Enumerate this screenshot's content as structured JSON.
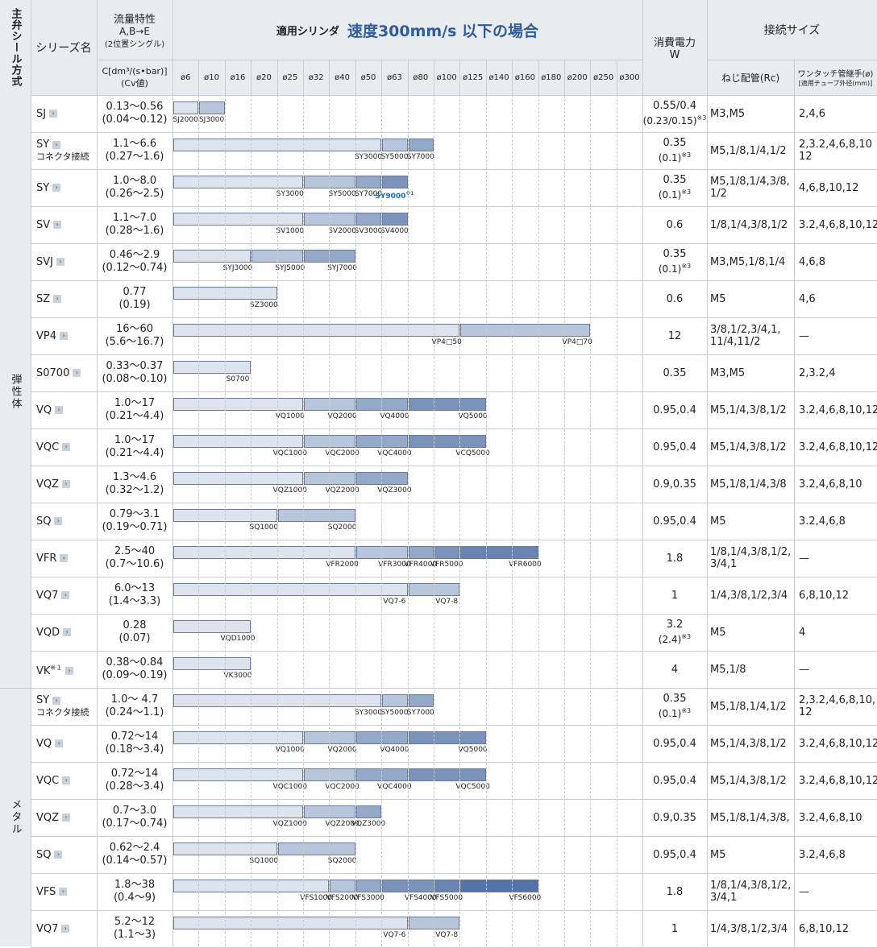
{
  "header": {
    "main_seal": "主弁シール方式",
    "series_name": "シリーズ名",
    "flow_title": "流量特性",
    "flow_ab": "A,B→E",
    "flow_sub": "(2位置シングル)",
    "flow_unit": "C[dm³/(s•bar)]",
    "flow_cv": "(Cv値)",
    "cyl_label": "適用シリンダ",
    "cyl_speed": "速度300mm/s 以下の場合",
    "power_title": "消費電力",
    "power_unit": "W",
    "conn_title": "接続サイズ",
    "conn_thread": "ねじ配管(Rc)",
    "conn_onetouch": "ワンタッチ管継手(ø)",
    "conn_onetouch_sub": "[適用チューブ外径(mm)]",
    "bores": [
      "ø6",
      "ø10",
      "ø16",
      "ø20",
      "ø25",
      "ø32",
      "ø40",
      "ø50",
      "ø63",
      "ø80",
      "ø100",
      "ø125",
      "ø140",
      "ø160",
      "ø180",
      "ø200",
      "ø250",
      "ø300"
    ]
  },
  "groups": [
    {
      "label": "弾性体",
      "rows": 16
    },
    {
      "label": "メタル",
      "rows": 7
    }
  ],
  "colors": {
    "seg1": "#dde4ee",
    "seg2": "#b7c6da",
    "seg3": "#94a8c8",
    "seg4": "#7b93bb",
    "seg5": "#6a84b2",
    "seg6": "#5573a6",
    "header_bg": "#e9ecef",
    "title_blue": "#2f5c9e",
    "accent_blue": "#1a6fc4"
  },
  "rows": [
    {
      "series": "SJ",
      "sub": "",
      "note": "",
      "flow": "0.13〜0.56",
      "cv": "(0.04〜0.12)",
      "power": "0.55/0.4",
      "power2": "(0.23/0.15)",
      "pnote": "※3",
      "thread": "M3,M5",
      "thread2": "",
      "onetouch": "2,4,6",
      "onetouch2": "",
      "bars": [
        {
          "to": 1,
          "label": "SJ2000"
        },
        {
          "to": 2,
          "label": "SJ3000"
        }
      ]
    },
    {
      "series": "SY",
      "sub": "コネクタ接続",
      "note": "",
      "flow": "1.1〜6.6",
      "cv": "(0.27〜1.6)",
      "power": "0.35",
      "power2": "(0.1)",
      "pnote": "※3",
      "thread": "M5,1/8,1/4,1/2",
      "thread2": "",
      "onetouch": "2,3.2,4,6,8,10",
      "onetouch2": "12",
      "bars": [
        {
          "to": 8,
          "label": "SY3000"
        },
        {
          "to": 9,
          "label": "SY5000"
        },
        {
          "to": 10,
          "label": "SY7000"
        }
      ]
    },
    {
      "series": "SY",
      "sub": "",
      "note": "",
      "flow": "1.0〜8.0",
      "cv": "(0.26〜2.5)",
      "power": "0.35",
      "power2": "(0.1)",
      "pnote": "※3",
      "thread": "M5,1/8,1/4,3/8,",
      "thread2": "1/2",
      "onetouch": "4,6,8,10,12",
      "onetouch2": "",
      "bars": [
        {
          "to": 5,
          "label": "SY3000"
        },
        {
          "to": 7,
          "label": "SY5000"
        },
        {
          "to": 8,
          "label": "SY7000"
        },
        {
          "to": 9,
          "label": "SY9000",
          "blue": true,
          "lnote": "※1"
        }
      ]
    },
    {
      "series": "SV",
      "sub": "",
      "note": "",
      "flow": "1.1〜7.0",
      "cv": "(0.28〜1.6)",
      "power": "0.6",
      "power2": "",
      "pnote": "",
      "thread": "1/8,1/4,3/8,1/2",
      "thread2": "",
      "onetouch": "3.2,4,6,8,10,12",
      "onetouch2": "",
      "bars": [
        {
          "to": 5,
          "label": "SV1000"
        },
        {
          "to": 7,
          "label": "SV2000"
        },
        {
          "to": 8,
          "label": "SV3000"
        },
        {
          "to": 9,
          "label": "SV4000"
        }
      ]
    },
    {
      "series": "SVJ",
      "sub": "",
      "note": "",
      "flow": "0.46〜2.9",
      "cv": "(0.12〜0.74)",
      "power": "0.35",
      "power2": "(0.1)",
      "pnote": "※3",
      "thread": "M3,M5,1/8,1/4",
      "thread2": "",
      "onetouch": "4,6,8",
      "onetouch2": "",
      "bars": [
        {
          "to": 3,
          "label": "SYJ3000"
        },
        {
          "to": 5,
          "label": "SYJ5000"
        },
        {
          "to": 7,
          "label": "SYJ7000"
        }
      ]
    },
    {
      "series": "SZ",
      "sub": "",
      "note": "",
      "flow": "0.77",
      "cv": "(0.19)",
      "power": "0.6",
      "power2": "",
      "pnote": "",
      "thread": "M5",
      "thread2": "",
      "onetouch": "4,6",
      "onetouch2": "",
      "bars": [
        {
          "to": 4,
          "label": "SZ3000"
        }
      ]
    },
    {
      "series": "VP4",
      "sub": "",
      "note": "",
      "flow": "16〜60",
      "cv": "(5.6〜16.7)",
      "power": "12",
      "power2": "",
      "pnote": "",
      "thread": "3/8,1/2,3/4,1,",
      "thread2": "11/4,11/2",
      "onetouch": "—",
      "onetouch2": "",
      "bars": [
        {
          "to": 11,
          "label": "VP4□50"
        },
        {
          "to": 16,
          "label": "VP4□70"
        }
      ]
    },
    {
      "series": "S0700",
      "sub": "",
      "note": "",
      "flow": "0.33〜0.37",
      "cv": "(0.08〜0.10)",
      "power": "0.35",
      "power2": "",
      "pnote": "",
      "thread": "M3,M5",
      "thread2": "",
      "onetouch": "2,3.2,4",
      "onetouch2": "",
      "bars": [
        {
          "to": 3,
          "label": "S0700"
        }
      ]
    },
    {
      "series": "VQ",
      "sub": "",
      "note": "",
      "flow": "1.0〜17",
      "cv": "(0.21〜4.4)",
      "power": "0.95,0.4",
      "power2": "",
      "pnote": "",
      "thread": "M5,1/4,3/8,1/2",
      "thread2": "",
      "onetouch": "3.2,4,6,8,10,12",
      "onetouch2": "",
      "bars": [
        {
          "to": 5,
          "label": "VQ1000"
        },
        {
          "to": 7,
          "label": "VQ2000"
        },
        {
          "to": 9,
          "label": "VQ4000"
        },
        {
          "to": 12,
          "label": "VQ5000"
        }
      ]
    },
    {
      "series": "VQC",
      "sub": "",
      "note": "",
      "flow": "1.0〜17",
      "cv": "(0.21〜4.4)",
      "power": "0.95,0.4",
      "power2": "",
      "pnote": "",
      "thread": "M5,1/4,3/8,1/2",
      "thread2": "",
      "onetouch": "3.2,4,6,8,10,12",
      "onetouch2": "",
      "bars": [
        {
          "to": 5,
          "label": "VQC1000"
        },
        {
          "to": 7,
          "label": "VQC2000"
        },
        {
          "to": 9,
          "label": "VQC4000"
        },
        {
          "to": 12,
          "label": "VCQ5000"
        }
      ]
    },
    {
      "series": "VQZ",
      "sub": "",
      "note": "",
      "flow": "1.3〜4.6",
      "cv": "(0.32〜1.2)",
      "power": "0.9,0.35",
      "power2": "",
      "pnote": "",
      "thread": "M5,1/8,1/4,3/8",
      "thread2": "",
      "onetouch": "3.2,4,6,8,10",
      "onetouch2": "",
      "bars": [
        {
          "to": 5,
          "label": "VQZ1000"
        },
        {
          "to": 7,
          "label": "VQZ2000"
        },
        {
          "to": 9,
          "label": "VQZ3000"
        }
      ]
    },
    {
      "series": "SQ",
      "sub": "",
      "note": "",
      "flow": "0.79〜3.1",
      "cv": "(0.19〜0.71)",
      "power": "0.95,0.4",
      "power2": "",
      "pnote": "",
      "thread": "M5",
      "thread2": "",
      "onetouch": "3.2,4,6,8",
      "onetouch2": "",
      "bars": [
        {
          "to": 4,
          "label": "SQ1000"
        },
        {
          "to": 7,
          "label": "SQ2000"
        }
      ]
    },
    {
      "series": "VFR",
      "sub": "",
      "note": "",
      "flow": "2.5〜40",
      "cv": "(0.7〜10.6)",
      "power": "1.8",
      "power2": "",
      "pnote": "",
      "thread": "1/8,1/4,3/8,1/2,",
      "thread2": "3/4,1",
      "onetouch": "—",
      "onetouch2": "",
      "bars": [
        {
          "to": 7,
          "label": "VFR2000"
        },
        {
          "to": 9,
          "label": "VFR3000"
        },
        {
          "to": 10,
          "label": "VFR4000"
        },
        {
          "to": 11,
          "label": "VFR5000"
        },
        {
          "to": 14,
          "label": "VFR6000"
        }
      ]
    },
    {
      "series": "VQ7",
      "sub": "",
      "note": "",
      "flow": "6.0〜13",
      "cv": "(1.4〜3.3)",
      "power": "1",
      "power2": "",
      "pnote": "",
      "thread": "1/4,3/8,1/2,3/4",
      "thread2": "",
      "onetouch": "6,8,10,12",
      "onetouch2": "",
      "bars": [
        {
          "to": 9,
          "label": "VQ7-6"
        },
        {
          "to": 11,
          "label": "VQ7-8"
        }
      ]
    },
    {
      "series": "VQD",
      "sub": "",
      "note": "",
      "flow": "0.28",
      "cv": "(0.07)",
      "power": "3.2",
      "power2": "(2.4)",
      "pnote": "※3",
      "thread": "M5",
      "thread2": "",
      "onetouch": "4",
      "onetouch2": "",
      "bars": [
        {
          "to": 3,
          "label": "VQD1000"
        }
      ]
    },
    {
      "series": "VK",
      "sub": "",
      "note": "※１",
      "flow": "0.38〜0.84",
      "cv": "(0.09〜0.19)",
      "power": "4",
      "power2": "",
      "pnote": "",
      "thread": "M5,1/8",
      "thread2": "",
      "onetouch": "—",
      "onetouch2": "",
      "bars": [
        {
          "to": 3,
          "label": "VK3000"
        }
      ]
    },
    {
      "series": "SY",
      "sub": "コネクタ接続",
      "note": "",
      "flow": "1.0〜 4.7",
      "cv": "(0.24〜1.1)",
      "power": "0.35",
      "power2": "(0.1)",
      "pnote": "※3",
      "thread": "M5,1/8,1/4,1/2",
      "thread2": "",
      "onetouch": "2,3.2,4,6,8,10,",
      "onetouch2": "12",
      "bars": [
        {
          "to": 8,
          "label": "SY3000"
        },
        {
          "to": 9,
          "label": "SY5000"
        },
        {
          "to": 10,
          "label": "SY7000"
        }
      ]
    },
    {
      "series": "VQ",
      "sub": "",
      "note": "",
      "flow": "0.72〜14",
      "cv": "(0.18〜3.4)",
      "power": "0.95,0.4",
      "power2": "",
      "pnote": "",
      "thread": "M5,1/4,3/8,1/2",
      "thread2": "",
      "onetouch": "3.2,4,6,8,10,12",
      "onetouch2": "",
      "bars": [
        {
          "to": 5,
          "label": "VQ1000"
        },
        {
          "to": 7,
          "label": "VQ2000"
        },
        {
          "to": 9,
          "label": "VQ4000"
        },
        {
          "to": 12,
          "label": "VQ5000"
        }
      ]
    },
    {
      "series": "VQC",
      "sub": "",
      "note": "",
      "flow": "0.72〜14",
      "cv": "(0.28〜3.4)",
      "power": "0.95,0.4",
      "power2": "",
      "pnote": "",
      "thread": "M5,1/4,3/8,1/2",
      "thread2": "",
      "onetouch": "3.2,4,6,8,10,12",
      "onetouch2": "",
      "bars": [
        {
          "to": 5,
          "label": "VQC1000"
        },
        {
          "to": 7,
          "label": "VQC2000"
        },
        {
          "to": 9,
          "label": "VQC4000"
        },
        {
          "to": 12,
          "label": "VQC5000"
        }
      ]
    },
    {
      "series": "VQZ",
      "sub": "",
      "note": "",
      "flow": "0.7〜3.0",
      "cv": "(0.17〜0.74)",
      "power": "0.9,0.35",
      "power2": "",
      "pnote": "",
      "thread": "M5,1/8,1/4,3/8,",
      "thread2": "",
      "onetouch": "3.2,4,6,8,10",
      "onetouch2": "",
      "bars": [
        {
          "to": 5,
          "label": "VQZ1000"
        },
        {
          "to": 7,
          "label": "VQZ2000"
        },
        {
          "to": 8,
          "label": "VQZ3000"
        }
      ]
    },
    {
      "series": "SQ",
      "sub": "",
      "note": "",
      "flow": "0.62〜2.4",
      "cv": "(0.14〜0.57)",
      "power": "0.95,0.4",
      "power2": "",
      "pnote": "",
      "thread": "M5",
      "thread2": "",
      "onetouch": "3.2,4,6,8",
      "onetouch2": "",
      "bars": [
        {
          "to": 4,
          "label": "SQ1000"
        },
        {
          "to": 7,
          "label": "SQ2000"
        }
      ]
    },
    {
      "series": "VFS",
      "sub": "",
      "note": "",
      "flow": "1.8〜38",
      "cv": "(0.4〜9)",
      "power": "1.8",
      "power2": "",
      "pnote": "",
      "thread": "1/8,1/4,3/8,1/2,",
      "thread2": "3/4,1",
      "onetouch": "—",
      "onetouch2": "",
      "bars": [
        {
          "to": 6,
          "label": "VFS1000"
        },
        {
          "to": 7,
          "label": "VFS2000"
        },
        {
          "to": 8,
          "label": "VFS3000"
        },
        {
          "to": 10,
          "label": "VFS4000"
        },
        {
          "to": 11,
          "label": "VFS5000"
        },
        {
          "to": 14,
          "label": "VFS6000"
        }
      ]
    },
    {
      "series": "VQ7",
      "sub": "",
      "note": "",
      "flow": "5.2〜12",
      "cv": "(1.1〜3)",
      "power": "1",
      "power2": "",
      "pnote": "",
      "thread": "1/4,3/8,1/2,3/4",
      "thread2": "",
      "onetouch": "6,8,10,12",
      "onetouch2": "",
      "bars": [
        {
          "to": 9,
          "label": "VQ7-6"
        },
        {
          "to": 11,
          "label": "VQ7-8"
        }
      ]
    }
  ]
}
